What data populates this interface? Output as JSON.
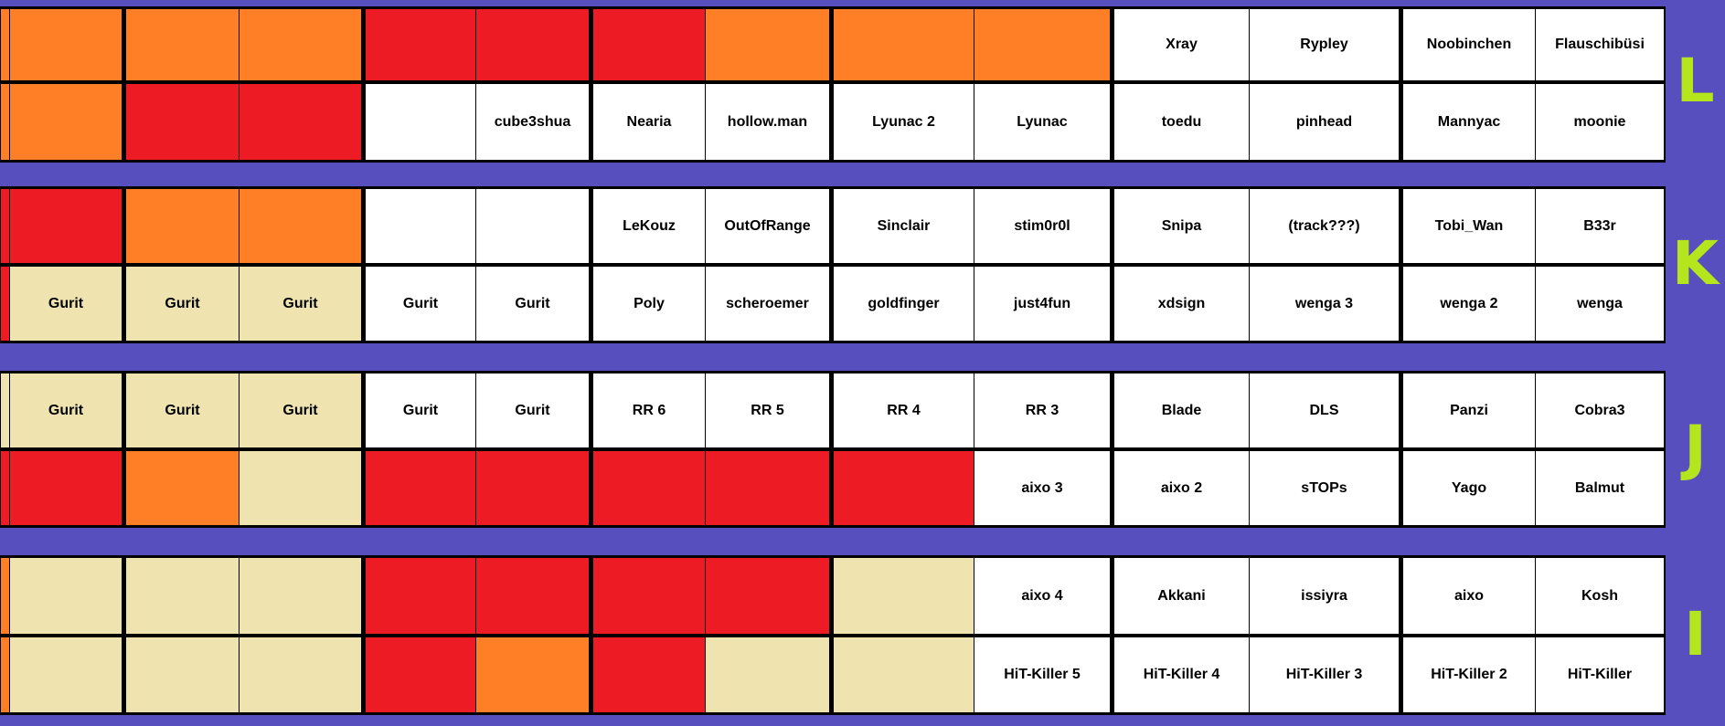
{
  "palette": {
    "O": "#FF7F27",
    "R": "#ED1C24",
    "W": "#FFFFFF",
    "B": "#EFE4B0"
  },
  "background_color": "#574FBD",
  "letter_color": "#B5E61D",
  "bands": [
    {
      "letter": "L",
      "rows": [
        [
          {
            "c": "O",
            "t": ""
          },
          {
            "c": "O",
            "t": ""
          },
          {
            "c": "O",
            "t": ""
          },
          {
            "c": "O",
            "t": ""
          },
          {
            "c": "R",
            "t": ""
          },
          {
            "c": "R",
            "t": ""
          },
          {
            "c": "R",
            "t": ""
          },
          {
            "c": "O",
            "t": ""
          },
          {
            "c": "O",
            "t": ""
          },
          {
            "c": "O",
            "t": ""
          },
          {
            "c": "W",
            "t": "Xray"
          },
          {
            "c": "W",
            "t": "Rypley"
          },
          {
            "c": "W",
            "t": "Noobinchen"
          },
          {
            "c": "W",
            "t": "Flauschibüsi"
          }
        ],
        [
          {
            "c": "O",
            "t": ""
          },
          {
            "c": "O",
            "t": ""
          },
          {
            "c": "R",
            "t": ""
          },
          {
            "c": "R",
            "t": ""
          },
          {
            "c": "W",
            "t": ""
          },
          {
            "c": "W",
            "t": "cube3shua"
          },
          {
            "c": "W",
            "t": "Nearia"
          },
          {
            "c": "W",
            "t": "hollow.man"
          },
          {
            "c": "W",
            "t": "Lyunac 2"
          },
          {
            "c": "W",
            "t": "Lyunac"
          },
          {
            "c": "W",
            "t": "toedu"
          },
          {
            "c": "W",
            "t": "pinhead"
          },
          {
            "c": "W",
            "t": "Mannyac"
          },
          {
            "c": "W",
            "t": "moonie"
          }
        ]
      ]
    },
    {
      "letter": "K",
      "rows": [
        [
          {
            "c": "R",
            "t": ""
          },
          {
            "c": "R",
            "t": ""
          },
          {
            "c": "O",
            "t": ""
          },
          {
            "c": "O",
            "t": ""
          },
          {
            "c": "W",
            "t": ""
          },
          {
            "c": "W",
            "t": ""
          },
          {
            "c": "W",
            "t": "LeKouz"
          },
          {
            "c": "W",
            "t": "OutOfRange"
          },
          {
            "c": "W",
            "t": "Sinclair"
          },
          {
            "c": "W",
            "t": "stim0r0l"
          },
          {
            "c": "W",
            "t": "Snipa"
          },
          {
            "c": "W",
            "t": "(track???)"
          },
          {
            "c": "W",
            "t": "Tobi_Wan"
          },
          {
            "c": "W",
            "t": "B33r"
          }
        ],
        [
          {
            "c": "R",
            "t": ""
          },
          {
            "c": "B",
            "t": "Gurit"
          },
          {
            "c": "B",
            "t": "Gurit"
          },
          {
            "c": "B",
            "t": "Gurit"
          },
          {
            "c": "W",
            "t": "Gurit"
          },
          {
            "c": "W",
            "t": "Gurit"
          },
          {
            "c": "W",
            "t": "Poly"
          },
          {
            "c": "W",
            "t": "scheroemer"
          },
          {
            "c": "W",
            "t": "goldfinger"
          },
          {
            "c": "W",
            "t": "just4fun"
          },
          {
            "c": "W",
            "t": "xdsign"
          },
          {
            "c": "W",
            "t": "wenga 3"
          },
          {
            "c": "W",
            "t": "wenga 2"
          },
          {
            "c": "W",
            "t": "wenga"
          }
        ]
      ]
    },
    {
      "letter": "J",
      "rows": [
        [
          {
            "c": "B",
            "t": ""
          },
          {
            "c": "B",
            "t": "Gurit"
          },
          {
            "c": "B",
            "t": "Gurit"
          },
          {
            "c": "B",
            "t": "Gurit"
          },
          {
            "c": "W",
            "t": "Gurit"
          },
          {
            "c": "W",
            "t": "Gurit"
          },
          {
            "c": "W",
            "t": "RR 6"
          },
          {
            "c": "W",
            "t": "RR 5"
          },
          {
            "c": "W",
            "t": "RR 4"
          },
          {
            "c": "W",
            "t": "RR 3"
          },
          {
            "c": "W",
            "t": "Blade"
          },
          {
            "c": "W",
            "t": "DLS"
          },
          {
            "c": "W",
            "t": "Panzi"
          },
          {
            "c": "W",
            "t": "Cobra3"
          }
        ],
        [
          {
            "c": "R",
            "t": ""
          },
          {
            "c": "R",
            "t": ""
          },
          {
            "c": "O",
            "t": ""
          },
          {
            "c": "B",
            "t": ""
          },
          {
            "c": "R",
            "t": ""
          },
          {
            "c": "R",
            "t": ""
          },
          {
            "c": "R",
            "t": ""
          },
          {
            "c": "R",
            "t": ""
          },
          {
            "c": "R",
            "t": ""
          },
          {
            "c": "W",
            "t": "aixo 3"
          },
          {
            "c": "W",
            "t": "aixo 2"
          },
          {
            "c": "W",
            "t": "sTOPs"
          },
          {
            "c": "W",
            "t": "Yago"
          },
          {
            "c": "W",
            "t": "Balmut"
          }
        ]
      ]
    },
    {
      "letter": "I",
      "rows": [
        [
          {
            "c": "O",
            "t": ""
          },
          {
            "c": "B",
            "t": ""
          },
          {
            "c": "B",
            "t": ""
          },
          {
            "c": "B",
            "t": ""
          },
          {
            "c": "R",
            "t": ""
          },
          {
            "c": "R",
            "t": ""
          },
          {
            "c": "R",
            "t": ""
          },
          {
            "c": "R",
            "t": ""
          },
          {
            "c": "B",
            "t": ""
          },
          {
            "c": "W",
            "t": "aixo 4"
          },
          {
            "c": "W",
            "t": "Akkani"
          },
          {
            "c": "W",
            "t": "issiyra"
          },
          {
            "c": "W",
            "t": "aixo"
          },
          {
            "c": "W",
            "t": "Kosh"
          }
        ],
        [
          {
            "c": "O",
            "t": ""
          },
          {
            "c": "B",
            "t": ""
          },
          {
            "c": "B",
            "t": ""
          },
          {
            "c": "B",
            "t": ""
          },
          {
            "c": "R",
            "t": ""
          },
          {
            "c": "O",
            "t": ""
          },
          {
            "c": "R",
            "t": ""
          },
          {
            "c": "B",
            "t": ""
          },
          {
            "c": "B",
            "t": ""
          },
          {
            "c": "W",
            "t": "HiT-Killer 5"
          },
          {
            "c": "W",
            "t": "HiT-Killer 4"
          },
          {
            "c": "W",
            "t": "HiT-Killer 3"
          },
          {
            "c": "W",
            "t": "HiT-Killer 2"
          },
          {
            "c": "W",
            "t": "HiT-Killer"
          }
        ]
      ]
    }
  ]
}
